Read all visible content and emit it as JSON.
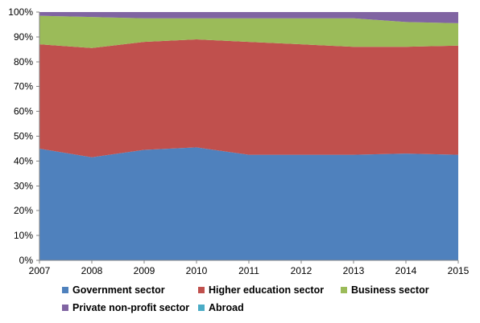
{
  "chart_data": {
    "type": "area",
    "stacked_percent": true,
    "x": [
      "2007",
      "2008",
      "2009",
      "2010",
      "2011",
      "2012",
      "2013",
      "2014",
      "2015"
    ],
    "series": [
      {
        "name": "Government sector",
        "color": "#4F81BD",
        "values": [
          45,
          41.5,
          44.5,
          45.5,
          42.5,
          42.5,
          42.5,
          43,
          42.5
        ]
      },
      {
        "name": "Higher education sector",
        "color": "#C0504D",
        "values": [
          42,
          44,
          43.5,
          43.5,
          45.5,
          44.5,
          43.5,
          43,
          44
        ]
      },
      {
        "name": "Business sector",
        "color": "#9BBB59",
        "values": [
          11.5,
          12.5,
          9.5,
          8.5,
          9.5,
          10.5,
          11.5,
          10,
          9
        ]
      },
      {
        "name": "Private non-profit sector",
        "color": "#8064A2",
        "values": [
          1.5,
          2,
          2.5,
          2.5,
          2.5,
          2.5,
          2.5,
          4,
          4.5
        ]
      },
      {
        "name": "Abroad",
        "color": "#4BACC6",
        "values": [
          0,
          0,
          0,
          0,
          0,
          0,
          0,
          0,
          0
        ]
      }
    ],
    "y_ticks": [
      "0%",
      "10%",
      "20%",
      "30%",
      "40%",
      "50%",
      "60%",
      "70%",
      "80%",
      "90%",
      "100%"
    ],
    "ylim": [
      0,
      100
    ],
    "grid": false,
    "legend_position": "bottom"
  }
}
